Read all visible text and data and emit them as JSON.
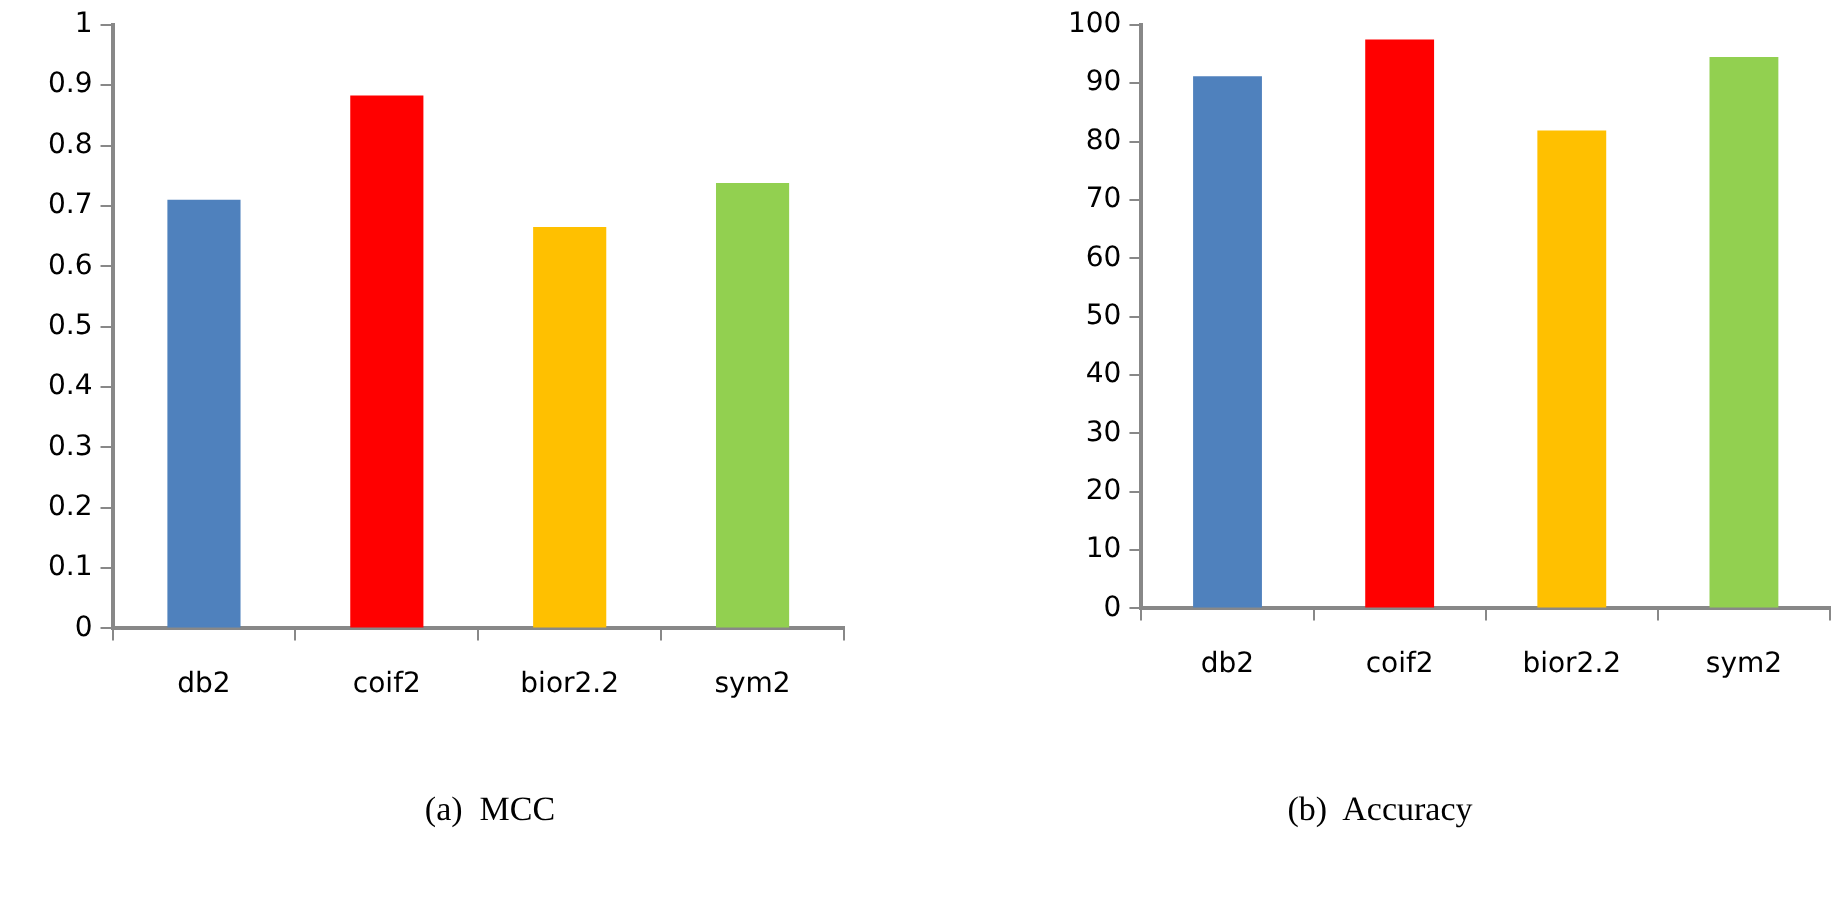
{
  "chart_data": [
    {
      "type": "bar",
      "categories": [
        "db2",
        "coif2",
        "bior2.2",
        "sym2"
      ],
      "values": [
        0.71,
        0.883,
        0.665,
        0.738
      ],
      "colors": [
        "#4f81bd",
        "#ff0000",
        "#ffc000",
        "#92d050"
      ],
      "ylim": [
        0,
        1
      ],
      "yticks": [
        0,
        0.1,
        0.2,
        0.3,
        0.4,
        0.5,
        0.6,
        0.7,
        0.8,
        0.9,
        1
      ],
      "grid": false,
      "legend": false,
      "annotations": [
        "(a)  MCC"
      ]
    },
    {
      "type": "bar",
      "categories": [
        "db2",
        "coif2",
        "bior2.2",
        "sym2"
      ],
      "values": [
        91.2,
        97.5,
        81.9,
        94.5
      ],
      "colors": [
        "#4f81bd",
        "#ff0000",
        "#ffc000",
        "#92d050"
      ],
      "ylim": [
        0,
        100
      ],
      "yticks": [
        0,
        10,
        20,
        30,
        40,
        50,
        60,
        70,
        80,
        90,
        100
      ],
      "grid": false,
      "legend": false,
      "annotations": [
        "(b)  Accuracy"
      ]
    }
  ]
}
